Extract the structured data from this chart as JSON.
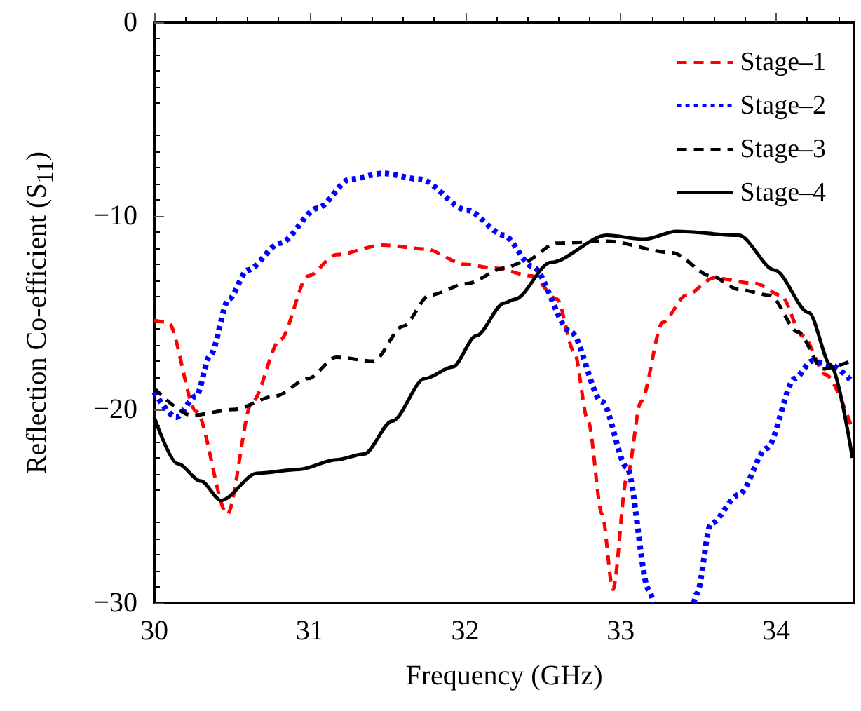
{
  "chart_data": {
    "type": "line",
    "xlabel": "Frequency (GHz)",
    "ylabel": "Reflection Co-efficient (S$_{11}$)",
    "xlim": [
      30,
      34.5
    ],
    "xticks": [
      30,
      31,
      32,
      33,
      34
    ],
    "ylim": [
      -30,
      0
    ],
    "yticks": [
      -30,
      -20,
      -10,
      0
    ],
    "legend": "top right",
    "grid": false,
    "marker": "none",
    "series": [
      {
        "name": "Stage–1",
        "color": "#ff0000",
        "line_style": "dashed",
        "x": [
          30.0,
          30.09,
          30.27,
          30.47,
          30.63,
          30.81,
          30.99,
          31.17,
          31.47,
          31.74,
          32.0,
          32.19,
          32.43,
          32.59,
          32.7,
          32.79,
          32.88,
          32.95,
          33.04,
          33.13,
          33.27,
          33.42,
          33.6,
          33.87,
          34.03,
          34.17,
          34.32,
          34.48
        ],
        "values": [
          -15.4,
          -15.5,
          -20.1,
          -25.4,
          -19.6,
          -16.4,
          -13.1,
          -12.0,
          -11.5,
          -11.7,
          -12.5,
          -12.7,
          -13.1,
          -14.3,
          -17.0,
          -20.6,
          -25.4,
          -29.3,
          -23.5,
          -19.6,
          -15.5,
          -14.1,
          -13.2,
          -13.5,
          -14.1,
          -16.2,
          -18.2,
          -20.8
        ]
      },
      {
        "name": "Stage–2",
        "color": "#0000ff",
        "line_style": "dotted",
        "x": [
          30.0,
          30.14,
          30.27,
          30.36,
          30.48,
          30.6,
          30.81,
          31.05,
          31.26,
          31.47,
          31.71,
          32.01,
          32.25,
          32.43,
          32.68,
          32.88,
          33.04,
          33.18,
          33.21,
          33.35,
          33.47,
          33.49,
          33.58,
          33.76,
          33.94,
          34.12,
          34.23,
          34.35,
          34.48
        ],
        "values": [
          -19.1,
          -20.4,
          -19.3,
          -17.2,
          -14.3,
          -12.8,
          -11.4,
          -9.6,
          -8.1,
          -7.8,
          -8.1,
          -9.7,
          -11.0,
          -12.6,
          -16.0,
          -19.6,
          -23.0,
          -29.3,
          -30.0,
          null,
          -30.0,
          -29.5,
          -25.9,
          -24.4,
          -22.0,
          -18.4,
          -17.5,
          -17.7,
          -18.5
        ]
      },
      {
        "name": "Stage–3",
        "color": "#000000",
        "line_style": "dashed",
        "x": [
          30.0,
          30.24,
          30.51,
          30.78,
          30.99,
          31.17,
          31.41,
          31.6,
          31.77,
          32.01,
          32.25,
          32.37,
          32.59,
          32.91,
          33.33,
          33.58,
          33.76,
          33.96,
          34.14,
          34.3,
          34.48
        ],
        "values": [
          -18.9,
          -20.3,
          -20.0,
          -19.3,
          -18.4,
          -17.3,
          -17.5,
          -15.7,
          -14.1,
          -13.5,
          -12.7,
          -12.4,
          -11.4,
          -11.3,
          -11.9,
          -13.1,
          -13.8,
          -14.1,
          -16.0,
          -17.9,
          -17.5
        ]
      },
      {
        "name": "Stage–4",
        "color": "#000000",
        "line_style": "solid",
        "x": [
          30.0,
          30.15,
          30.3,
          30.43,
          30.66,
          30.93,
          31.17,
          31.35,
          31.53,
          31.74,
          31.92,
          32.07,
          32.25,
          32.32,
          32.55,
          32.91,
          33.15,
          33.36,
          33.76,
          33.99,
          34.21,
          34.35,
          34.49
        ],
        "values": [
          -20.4,
          -22.8,
          -23.7,
          -24.7,
          -23.3,
          -23.1,
          -22.6,
          -22.3,
          -20.6,
          -18.4,
          -17.8,
          -16.2,
          -14.5,
          -14.3,
          -12.4,
          -11.0,
          -11.2,
          -10.8,
          -11.0,
          -12.8,
          -15.0,
          -17.7,
          -22.5
        ]
      }
    ]
  }
}
